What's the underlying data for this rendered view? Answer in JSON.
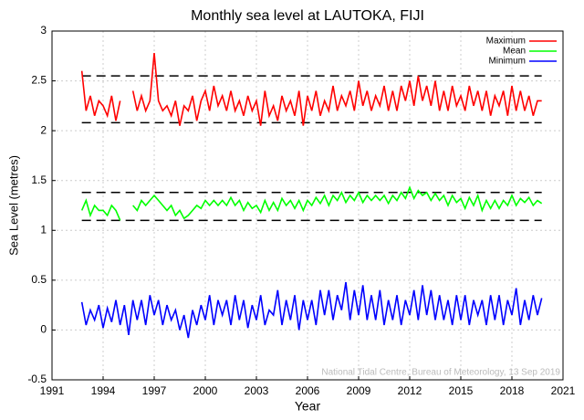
{
  "chart_data": {
    "type": "line",
    "title": "Monthly sea level at LAUTOKA, FIJI",
    "x_label": "Year",
    "y_label": "Sea Level (metres)",
    "annotation": "National Tidal Centre, Bureau of Meteorology, 13 Sep 2019",
    "xlim": [
      1991,
      2021
    ],
    "xticks": [
      1991,
      1994,
      1997,
      2000,
      2003,
      2006,
      2009,
      2012,
      2015,
      2018,
      2021
    ],
    "ylim": [
      -0.5,
      3
    ],
    "yticks": [
      -0.5,
      0,
      0.5,
      1,
      1.5,
      2,
      2.5,
      3
    ],
    "grid": true,
    "legend": "top-right",
    "reference_lines": [
      2.55,
      2.08,
      1.38,
      1.1
    ],
    "x": [
      1992.75,
      1993,
      1993.25,
      1993.5,
      1993.75,
      1994,
      1994.25,
      1994.5,
      1994.75,
      1995,
      1995.25,
      1995.5,
      1995.75,
      1996,
      1996.25,
      1996.5,
      1996.75,
      1997,
      1997.25,
      1997.5,
      1997.75,
      1998,
      1998.25,
      1998.5,
      1998.75,
      1999,
      1999.25,
      1999.5,
      1999.75,
      2000,
      2000.25,
      2000.5,
      2000.75,
      2001,
      2001.25,
      2001.5,
      2001.75,
      2002,
      2002.25,
      2002.5,
      2002.75,
      2003,
      2003.25,
      2003.5,
      2003.75,
      2004,
      2004.25,
      2004.5,
      2004.75,
      2005,
      2005.25,
      2005.5,
      2005.75,
      2006,
      2006.25,
      2006.5,
      2006.75,
      2007,
      2007.25,
      2007.5,
      2007.75,
      2008,
      2008.25,
      2008.5,
      2008.75,
      2009,
      2009.25,
      2009.5,
      2009.75,
      2010,
      2010.25,
      2010.5,
      2010.75,
      2011,
      2011.25,
      2011.5,
      2011.75,
      2012,
      2012.25,
      2012.5,
      2012.75,
      2013,
      2013.25,
      2013.5,
      2013.75,
      2014,
      2014.25,
      2014.5,
      2014.75,
      2015,
      2015.25,
      2015.5,
      2015.75,
      2016,
      2016.25,
      2016.5,
      2016.75,
      2017,
      2017.25,
      2017.5,
      2017.75,
      2018,
      2018.25,
      2018.5,
      2018.75,
      2019,
      2019.25,
      2019.5,
      2019.75
    ],
    "series": [
      {
        "name": "Maximum",
        "color": "#ff0000",
        "values": [
          2.6,
          2.2,
          2.35,
          2.15,
          2.3,
          2.25,
          2.15,
          2.35,
          2.1,
          2.3,
          null,
          null,
          2.4,
          2.2,
          2.35,
          2.2,
          2.3,
          2.78,
          2.3,
          2.2,
          2.25,
          2.15,
          2.3,
          2.05,
          2.25,
          2.2,
          2.35,
          2.1,
          2.3,
          2.4,
          2.2,
          2.45,
          2.25,
          2.35,
          2.2,
          2.4,
          2.2,
          2.3,
          2.15,
          2.35,
          2.2,
          2.3,
          2.05,
          2.4,
          2.15,
          2.25,
          2.1,
          2.35,
          2.2,
          2.3,
          2.15,
          2.4,
          2.05,
          2.35,
          2.2,
          2.4,
          2.15,
          2.3,
          2.2,
          2.45,
          2.2,
          2.35,
          2.25,
          2.4,
          2.2,
          2.5,
          2.25,
          2.4,
          2.2,
          2.35,
          2.25,
          2.45,
          2.2,
          2.4,
          2.2,
          2.45,
          2.3,
          2.5,
          2.25,
          2.55,
          2.3,
          2.45,
          2.25,
          2.5,
          2.2,
          2.4,
          2.2,
          2.45,
          2.25,
          2.35,
          2.2,
          2.45,
          2.25,
          2.4,
          2.2,
          2.4,
          2.15,
          2.35,
          2.25,
          2.4,
          2.15,
          2.45,
          2.2,
          2.4,
          2.2,
          2.35,
          2.15,
          2.3,
          2.3
        ]
      },
      {
        "name": "Mean",
        "color": "#00ff00",
        "values": [
          1.2,
          1.3,
          1.15,
          1.25,
          1.2,
          1.2,
          1.15,
          1.25,
          1.2,
          1.1,
          null,
          null,
          1.25,
          1.2,
          1.3,
          1.25,
          1.3,
          1.35,
          1.3,
          1.25,
          1.2,
          1.25,
          1.15,
          1.2,
          1.12,
          1.15,
          1.2,
          1.25,
          1.22,
          1.3,
          1.25,
          1.3,
          1.25,
          1.3,
          1.25,
          1.33,
          1.25,
          1.3,
          1.2,
          1.28,
          1.22,
          1.25,
          1.18,
          1.3,
          1.2,
          1.28,
          1.2,
          1.32,
          1.25,
          1.3,
          1.22,
          1.3,
          1.2,
          1.3,
          1.25,
          1.33,
          1.27,
          1.35,
          1.25,
          1.35,
          1.3,
          1.38,
          1.28,
          1.35,
          1.3,
          1.38,
          1.28,
          1.35,
          1.3,
          1.35,
          1.3,
          1.35,
          1.27,
          1.35,
          1.3,
          1.38,
          1.32,
          1.43,
          1.32,
          1.4,
          1.35,
          1.38,
          1.3,
          1.37,
          1.3,
          1.35,
          1.25,
          1.35,
          1.28,
          1.32,
          1.22,
          1.33,
          1.25,
          1.35,
          1.2,
          1.3,
          1.22,
          1.3,
          1.22,
          1.3,
          1.25,
          1.35,
          1.25,
          1.32,
          1.28,
          1.33,
          1.25,
          1.3,
          1.27
        ]
      },
      {
        "name": "Minimum",
        "color": "#0000ff",
        "values": [
          0.28,
          0.05,
          0.2,
          0.1,
          0.25,
          0.02,
          0.22,
          0.08,
          0.3,
          0.05,
          0.25,
          -0.05,
          0.3,
          0.1,
          0.3,
          0.05,
          0.35,
          0.15,
          0.3,
          0.05,
          0.25,
          0.1,
          0.2,
          0.0,
          0.15,
          -0.08,
          0.2,
          0.05,
          0.25,
          0.1,
          0.35,
          0.05,
          0.3,
          0.15,
          0.3,
          0.05,
          0.35,
          0.1,
          0.3,
          0.02,
          0.25,
          0.1,
          0.35,
          0.05,
          0.2,
          0.15,
          0.4,
          0.05,
          0.3,
          0.1,
          0.35,
          0.0,
          0.3,
          0.1,
          0.3,
          0.05,
          0.4,
          0.15,
          0.4,
          0.1,
          0.35,
          0.2,
          0.48,
          0.1,
          0.4,
          0.15,
          0.45,
          0.1,
          0.35,
          0.1,
          0.4,
          0.05,
          0.3,
          0.1,
          0.35,
          0.05,
          0.3,
          0.15,
          0.4,
          0.1,
          0.45,
          0.15,
          0.4,
          0.1,
          0.35,
          0.1,
          0.3,
          0.05,
          0.35,
          0.1,
          0.35,
          0.05,
          0.3,
          0.15,
          0.3,
          0.05,
          0.35,
          0.1,
          0.35,
          0.05,
          0.3,
          0.15,
          0.42,
          0.05,
          0.3,
          0.1,
          0.35,
          0.15,
          0.32
        ]
      }
    ]
  }
}
